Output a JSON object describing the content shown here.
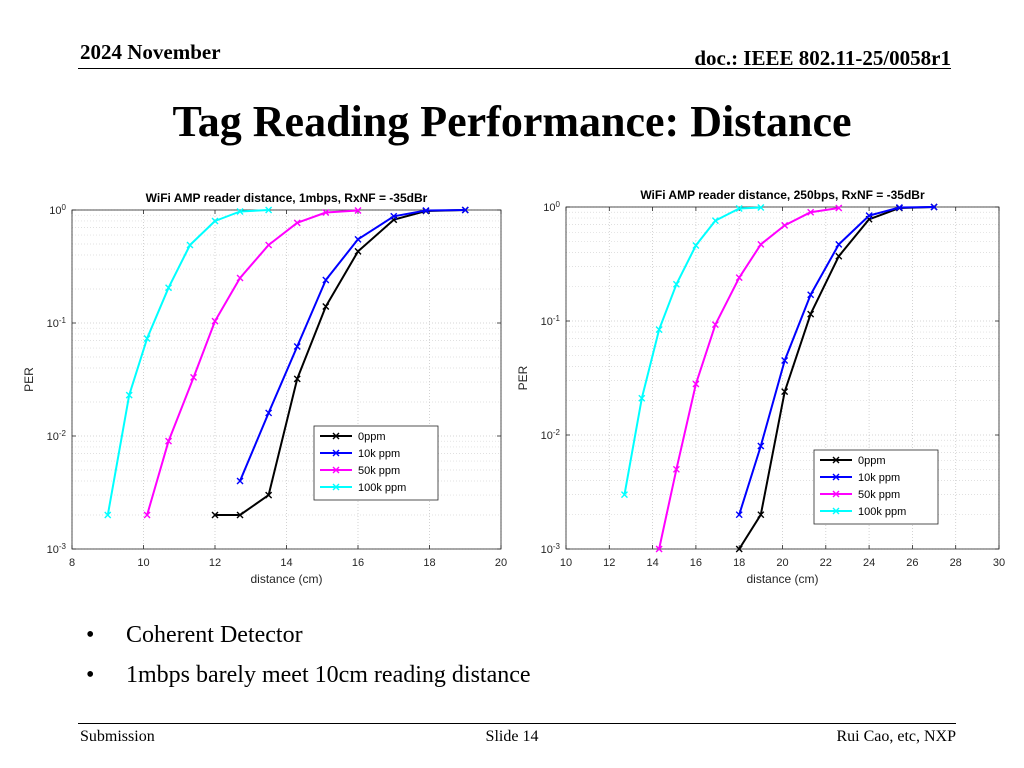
{
  "header": {
    "left": "2024 November",
    "right": "doc.: IEEE 802.11-25/0058r1"
  },
  "title": "Tag Reading Performance: Distance",
  "bullets": [
    "Coherent Detector",
    "1mbps barely meet 10cm reading distance"
  ],
  "bullet_symbol": "•",
  "footer": {
    "left": "Submission",
    "center": "Slide 14",
    "right": "Rui Cao, etc, NXP"
  },
  "chart_data": [
    {
      "type": "line",
      "title": "WiFi AMP reader distance, 1mbps, RxNF = -35dBr",
      "xlabel": "distance (cm)",
      "ylabel": "PER",
      "xlim": [
        8,
        20
      ],
      "ylim": [
        0.001,
        1
      ],
      "yscale": "log",
      "xticks": [
        8,
        10,
        12,
        14,
        16,
        18,
        20
      ],
      "yticks": [
        {
          "base": "10",
          "exp": "-3"
        },
        {
          "base": "10",
          "exp": "-2"
        },
        {
          "base": "10",
          "exp": "-1"
        },
        {
          "base": "10",
          "exp": "0"
        }
      ],
      "grid": true,
      "marker": "x",
      "legend": "lower-right",
      "series": [
        {
          "name": "0ppm",
          "color": "#000000",
          "x": [
            12,
            12.7,
            13.5,
            14.3,
            15.1,
            16,
            17,
            17.9,
            19
          ],
          "y": [
            0.002,
            0.002,
            0.003,
            0.032,
            0.14,
            0.43,
            0.82,
            0.98,
            1
          ]
        },
        {
          "name": "10k ppm",
          "color": "#0000ff",
          "x": [
            12.7,
            13.5,
            14.3,
            15.1,
            16,
            17,
            17.9,
            19
          ],
          "y": [
            0.004,
            0.016,
            0.062,
            0.24,
            0.55,
            0.88,
            0.99,
            1
          ]
        },
        {
          "name": "50k ppm",
          "color": "#ff00ff",
          "x": [
            10.1,
            10.7,
            11.4,
            12,
            12.7,
            13.5,
            14.3,
            15.1,
            16
          ],
          "y": [
            0.002,
            0.009,
            0.033,
            0.104,
            0.25,
            0.49,
            0.77,
            0.95,
            0.99
          ]
        },
        {
          "name": "100k ppm",
          "color": "#00ffff",
          "x": [
            9,
            9.6,
            10.1,
            10.7,
            11.3,
            12,
            12.7,
            13.5
          ],
          "y": [
            0.002,
            0.023,
            0.073,
            0.205,
            0.49,
            0.8,
            0.97,
            1
          ]
        }
      ]
    },
    {
      "type": "line",
      "title": "WiFi AMP reader distance, 250bps, RxNF = -35dBr",
      "xlabel": "distance (cm)",
      "ylabel": "PER",
      "xlim": [
        10,
        30
      ],
      "ylim": [
        0.001,
        1
      ],
      "yscale": "log",
      "xticks": [
        10,
        12,
        14,
        16,
        18,
        20,
        22,
        24,
        26,
        28,
        30
      ],
      "yticks": [
        {
          "base": "10",
          "exp": "-3"
        },
        {
          "base": "10",
          "exp": "-2"
        },
        {
          "base": "10",
          "exp": "-1"
        },
        {
          "base": "10",
          "exp": "0"
        }
      ],
      "grid": true,
      "marker": "x",
      "legend": "lower-right",
      "series": [
        {
          "name": "0ppm",
          "color": "#000000",
          "x": [
            18,
            19,
            20.1,
            21.3,
            22.6,
            24,
            25.4,
            27
          ],
          "y": [
            0.001,
            0.002,
            0.024,
            0.115,
            0.37,
            0.78,
            0.98,
            1
          ]
        },
        {
          "name": "10k ppm",
          "color": "#0000ff",
          "x": [
            18,
            19,
            20.1,
            21.3,
            22.6,
            24,
            25.4,
            27
          ],
          "y": [
            0.002,
            0.008,
            0.045,
            0.17,
            0.47,
            0.84,
            0.99,
            1
          ]
        },
        {
          "name": "50k ppm",
          "color": "#ff00ff",
          "x": [
            14.3,
            15.1,
            16,
            16.9,
            18,
            19,
            20.1,
            21.3,
            22.6
          ],
          "y": [
            0.001,
            0.005,
            0.028,
            0.093,
            0.24,
            0.47,
            0.69,
            0.9,
            0.98
          ]
        },
        {
          "name": "100k ppm",
          "color": "#00ffff",
          "x": [
            12.7,
            13.5,
            14.3,
            15.1,
            16,
            16.9,
            18,
            19
          ],
          "y": [
            0.003,
            0.021,
            0.084,
            0.21,
            0.46,
            0.76,
            0.97,
            0.99
          ]
        }
      ]
    }
  ]
}
